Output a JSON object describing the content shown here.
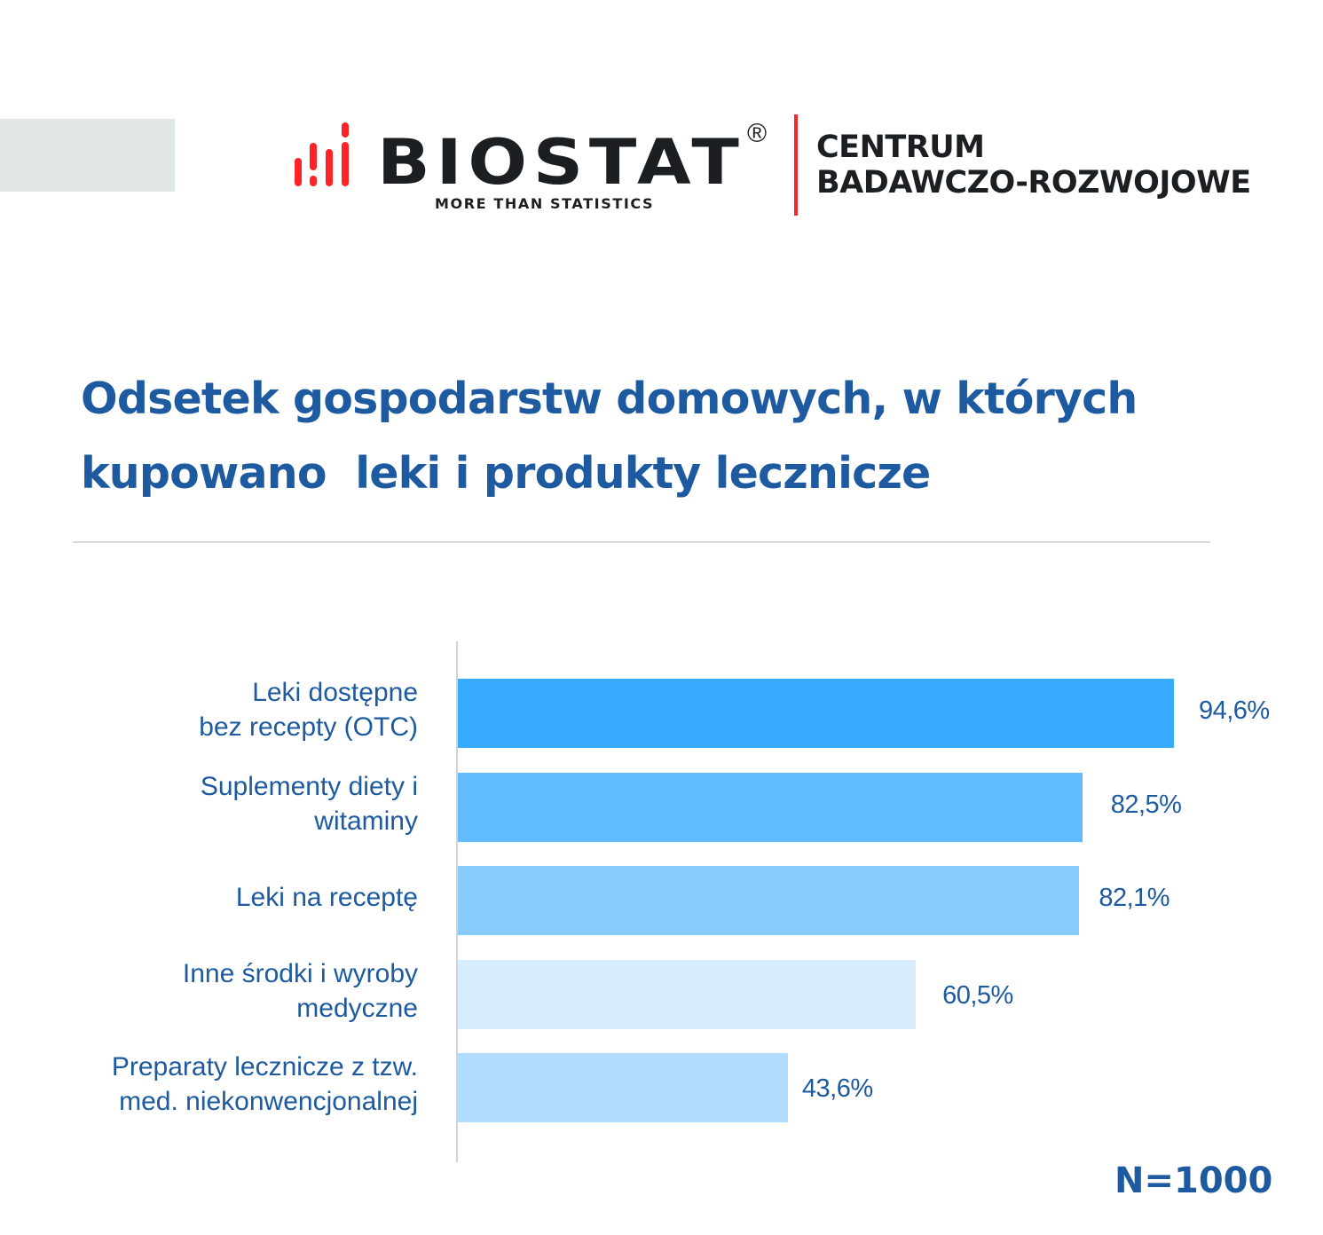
{
  "header": {
    "logo_text": "BIOSTAT",
    "logo_registered": "®",
    "logo_tagline": "MORE THAN STATISTICS",
    "org_line1": "CENTRUM",
    "org_line2": "BADAWCZO-ROZWOJOWE",
    "brand_red": "#ee2a2f"
  },
  "chart_data": {
    "type": "bar",
    "orientation": "horizontal",
    "title": "Odsetek gospodarstw domowych, w których\nkupowano  leki i produkty lecznicze",
    "categories": [
      "Leki dostępne\nbez recepty (OTC)",
      "Suplementy diety i\nwitaminy",
      "Leki na receptę",
      "Inne środki i wyroby\nmedyczne",
      "Preparaty lecznicze z tzw.\nmed. niekonwencjonalnej"
    ],
    "values": [
      94.6,
      82.5,
      82.1,
      60.5,
      43.6
    ],
    "labels": [
      "94,6%",
      "82,5%",
      "82,1%",
      "60,5%",
      "43,6%"
    ],
    "colors": [
      "#39abff",
      "#60bbff",
      "#87cbfd",
      "#d7edfd",
      "#b1dcfd"
    ],
    "xlim": [
      0,
      100
    ],
    "grid": false,
    "xlabel": "",
    "ylabel": "",
    "annotation": "N=1000"
  }
}
